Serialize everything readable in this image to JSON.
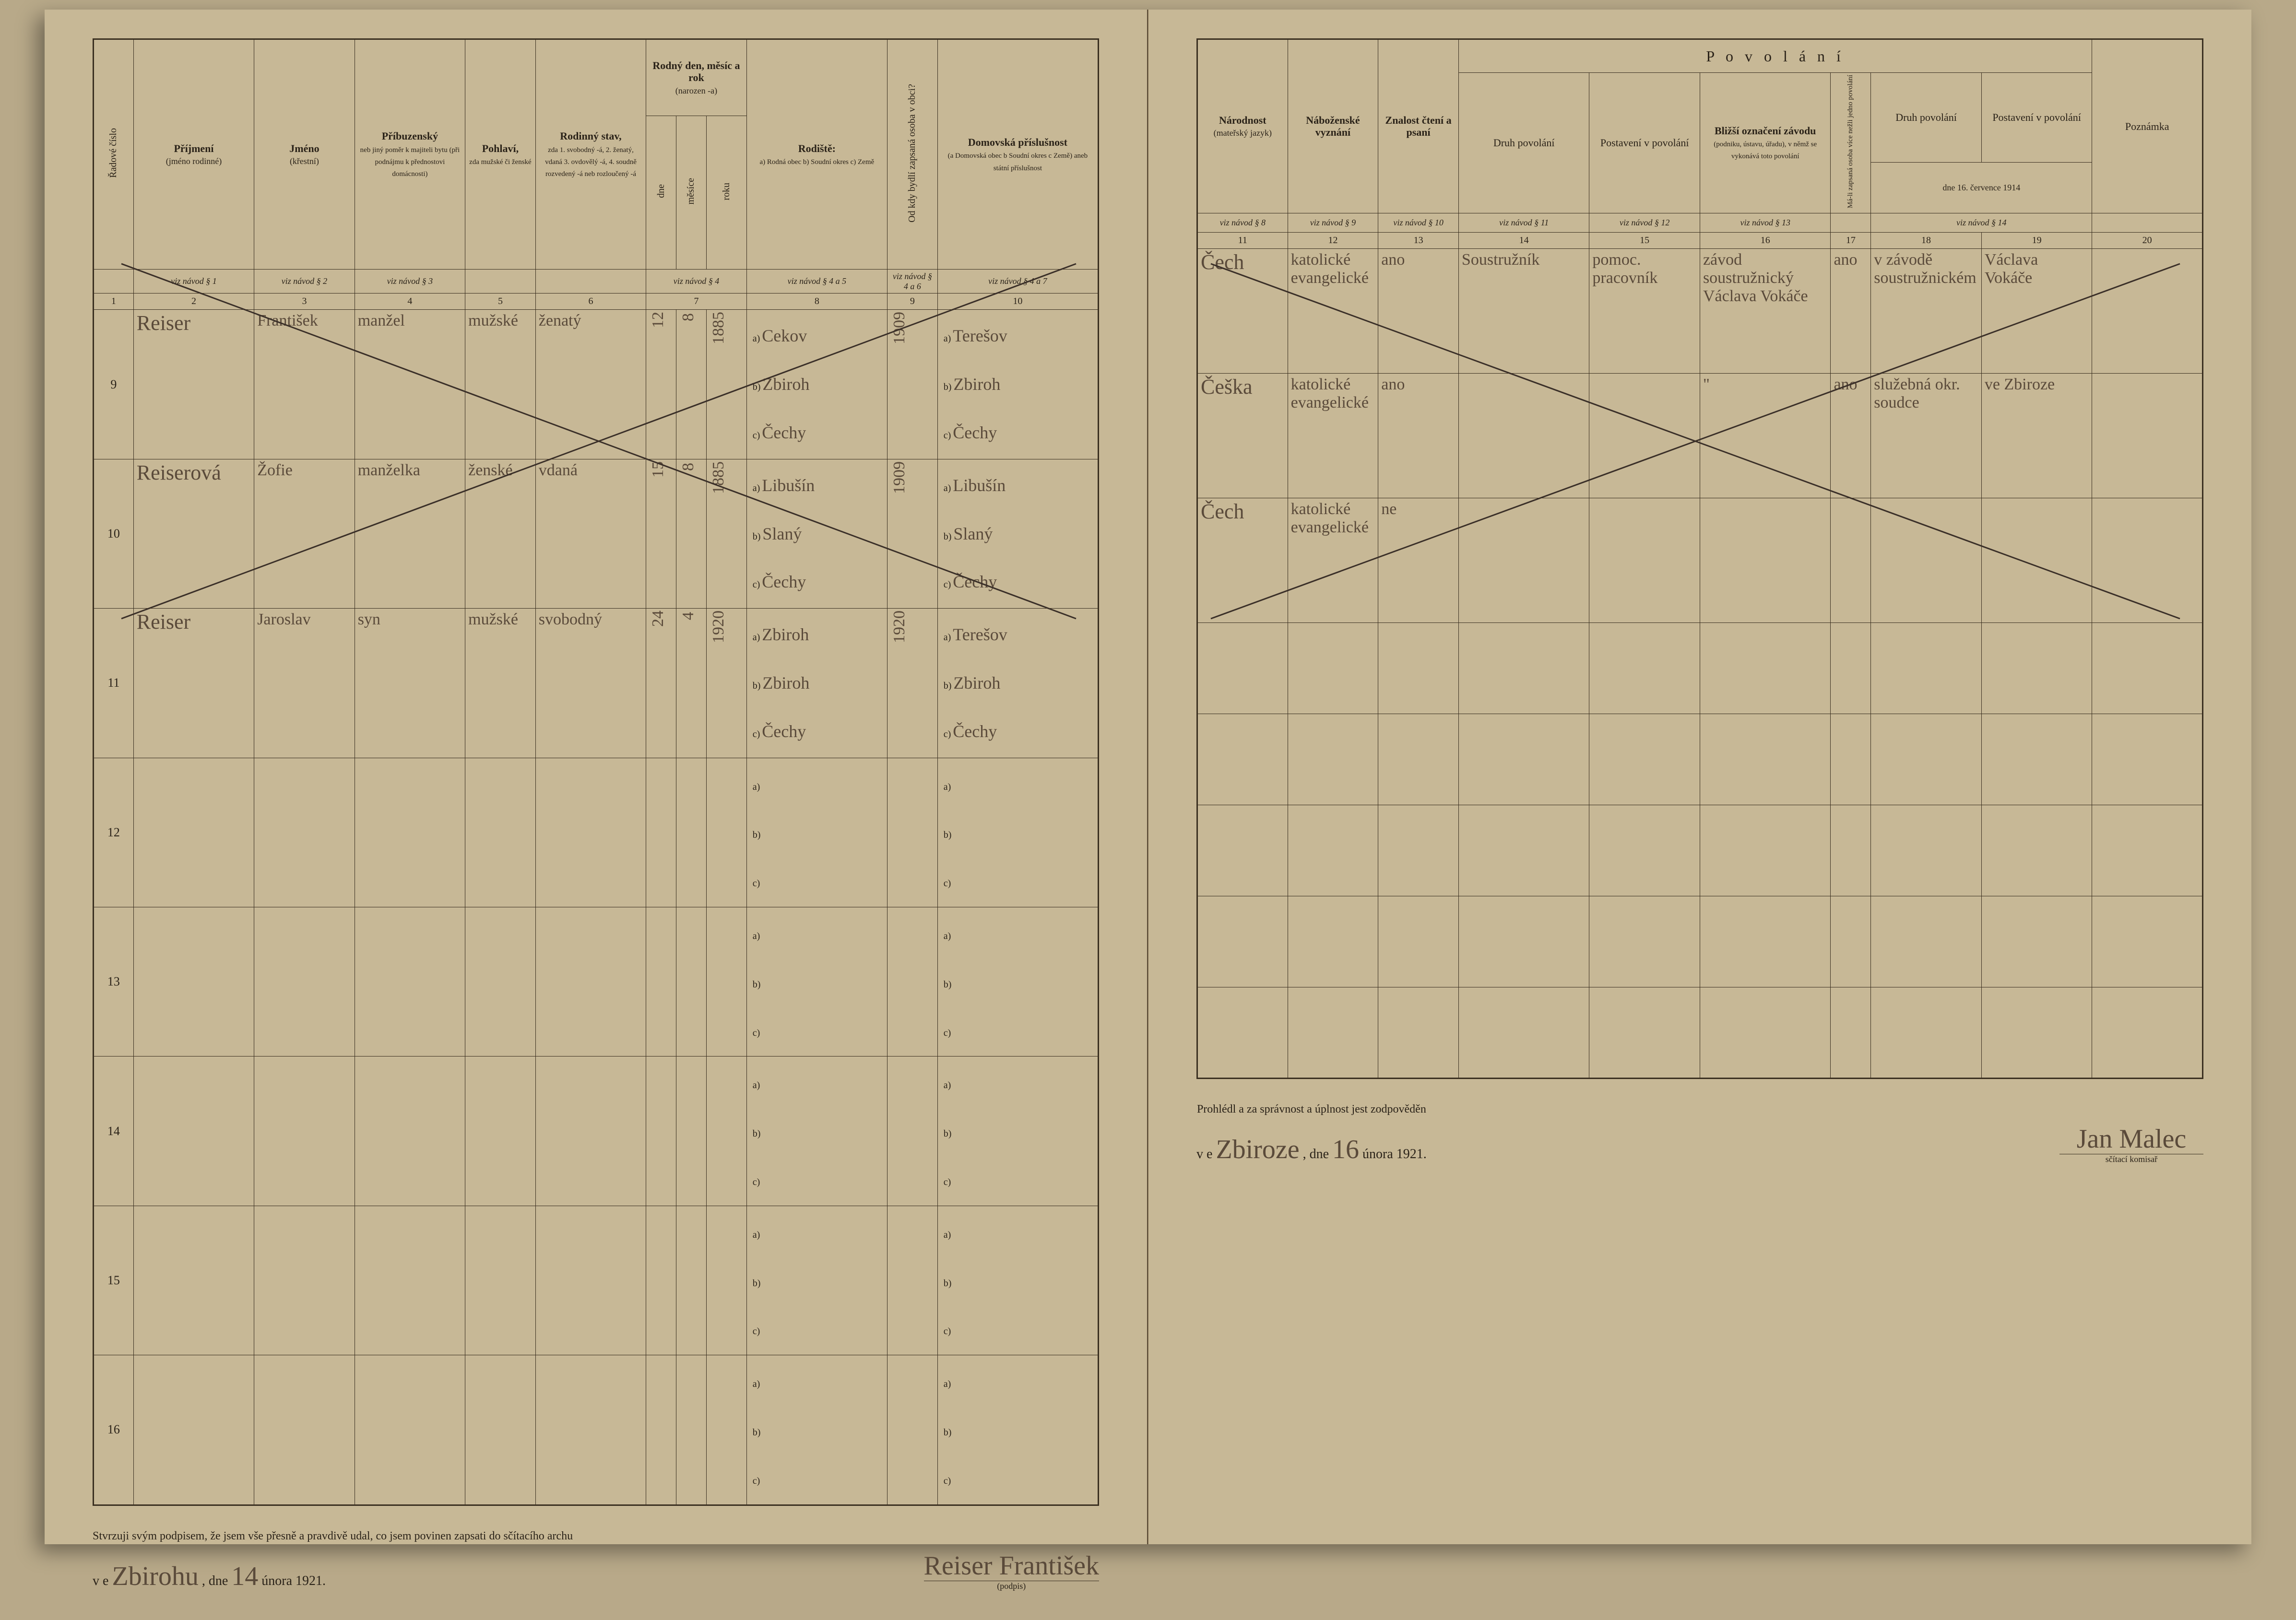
{
  "colors": {
    "paper": "#c7b896",
    "ink": "#2a2218",
    "handwriting": "#5a4a3a",
    "bg": "#b8a989",
    "border": "#3a2f20"
  },
  "leftPage": {
    "headers": {
      "col1": "Řadové číslo",
      "col2": {
        "title": "Příjmení",
        "sub": "(jméno rodinné)"
      },
      "col3": {
        "title": "Jméno",
        "sub": "(křestní)"
      },
      "col4": {
        "title": "Příbuzenský",
        "body": "neb jiný poměr k majiteli bytu (při podnájmu k přednostovi domácnosti)"
      },
      "col5": {
        "title": "Pohlaví,",
        "body": "zda mužské či ženské"
      },
      "col6": {
        "title": "Rodinný stav,",
        "body": "zda 1. svobodný -á, 2. ženatý, vdaná 3. ovdovělý -á, 4. soudně rozvedený -á neb rozloučený -á"
      },
      "col7": {
        "title": "Rodný den, měsíc a rok",
        "sub": "(narozen -a)",
        "sub1": "dne",
        "sub2": "měsíce",
        "sub3": "roku"
      },
      "col8": {
        "title": "Rodiště:",
        "body": "a) Rodná obec b) Soudní okres c) Země"
      },
      "col9": "Od kdy bydlí zapsaná osoba v obci?",
      "col10": {
        "title": "Domovská příslušnost",
        "body": "(a Domovská obec b Soudní okres c Země) aneb státní příslušnost"
      }
    },
    "refs": {
      "c1": "viz návod § 1",
      "c2": "viz návod § 2",
      "c3": "viz návod § 3",
      "c7": "viz návod § 4",
      "c8": "viz návod § 4 a 5",
      "c9": "viz návod § 4 a 6",
      "c10": "viz návod § 4 a 7"
    },
    "nums": [
      "1",
      "2",
      "3",
      "4",
      "5",
      "6",
      "7",
      "8",
      "9",
      "10"
    ],
    "rows": [
      {
        "n": "9",
        "surname": "Reiser",
        "given": "František",
        "rel": "manžel",
        "sex": "mužské",
        "status": "ženatý",
        "day": "12",
        "month": "8",
        "year": "1885",
        "birth_a": "Cekov",
        "birth_b": "Zbiroh",
        "birth_c": "Čechy",
        "since": "1909",
        "dom_a": "Terešov",
        "dom_b": "Zbiroh",
        "dom_c": "Čechy"
      },
      {
        "n": "10",
        "surname": "Reiserová",
        "given": "Žofie",
        "rel": "manželka",
        "sex": "ženské",
        "status": "vdaná",
        "day": "15",
        "month": "8",
        "year": "1885",
        "birth_a": "Libušín",
        "birth_b": "Slaný",
        "birth_c": "Čechy",
        "since": "1909",
        "dom_a": "Libušín",
        "dom_b": "Slaný",
        "dom_c": "Čechy"
      },
      {
        "n": "11",
        "surname": "Reiser",
        "given": "Jaroslav",
        "rel": "syn",
        "sex": "mužské",
        "status": "svobodný",
        "day": "24",
        "month": "4",
        "year": "1920",
        "birth_a": "Zbiroh",
        "birth_b": "Zbiroh",
        "birth_c": "Čechy",
        "since": "1920",
        "dom_a": "Terešov",
        "dom_b": "Zbiroh",
        "dom_c": "Čechy"
      }
    ],
    "blankRows": [
      "12",
      "13",
      "14",
      "15",
      "16"
    ],
    "footer": {
      "affirm": "Stvrzuji svým podpisem, že jsem vše přesně a pravdivě udal, co jsem povinen zapsati do sčítacího archu",
      "place_pre": "v e",
      "place": "Zbirohu",
      "date_pre": ", dne",
      "day": "14",
      "monthyear": "února 1921.",
      "sig": "Reiser František",
      "sig_sub": "(podpis)"
    }
  },
  "rightPage": {
    "headers": {
      "group": "P o v o l á n í",
      "col11": {
        "title": "Národnost",
        "sub": "(mateřský jazyk)"
      },
      "col12": {
        "title": "Náboženské vyznání"
      },
      "col13": {
        "title": "Znalost čtení a psaní"
      },
      "col14": "Druh povolání",
      "col15": "Postavení v povolání",
      "col16": {
        "title": "Bližší označení závodu",
        "body": "(podniku, ústavu, úřadu), v němž se vykonává toto povolání"
      },
      "col17_side": "Má-li zapsaná osoba více nežli jedno povolání",
      "col18": "Druh povolání",
      "col19": "Postavení v povolání",
      "col20": "Poznámka",
      "date1914": "dne 16. července 1914"
    },
    "refs": {
      "c11": "viz návod § 8",
      "c12": "viz návod § 9",
      "c13": "viz návod § 10",
      "c14": "viz návod § 11",
      "c15": "viz návod § 12",
      "c16": "viz návod § 13",
      "c18": "viz návod § 14"
    },
    "nums": [
      "11",
      "12",
      "13",
      "14",
      "15",
      "16",
      "17",
      "18",
      "19",
      "20"
    ],
    "rows": [
      {
        "nat": "Čech",
        "rel": "katolické evangelické",
        "lit": "ano",
        "occ": "Soustružník",
        "pos": "pomoc. pracovník",
        "firm": "závod soustružnický Václava Vokáče",
        "side": "ano",
        "occ2": "v závodě soustružnickém",
        "pos2": "Václava Vokáče"
      },
      {
        "nat": "Češka",
        "rel": "katolické evangelické",
        "lit": "ano",
        "occ": "",
        "pos": "",
        "firm": "\"",
        "side": "ano",
        "occ2": "služebná okr. soudce",
        "pos2": "ve Zbiroze"
      },
      {
        "nat": "Čech",
        "rel": "katolické evangelické",
        "lit": "ne",
        "occ": "",
        "pos": "",
        "firm": "",
        "side": "",
        "occ2": "",
        "pos2": ""
      }
    ],
    "footer": {
      "affirm": "Prohlédl a za správnost a úplnost jest zodpověděn",
      "place_pre": "v e",
      "place": "Zbiroze",
      "date_pre": ", dne",
      "day": "16",
      "monthyear": "února 1921.",
      "sig": "Jan Malec",
      "sig_sub": "sčítací komisař"
    }
  }
}
